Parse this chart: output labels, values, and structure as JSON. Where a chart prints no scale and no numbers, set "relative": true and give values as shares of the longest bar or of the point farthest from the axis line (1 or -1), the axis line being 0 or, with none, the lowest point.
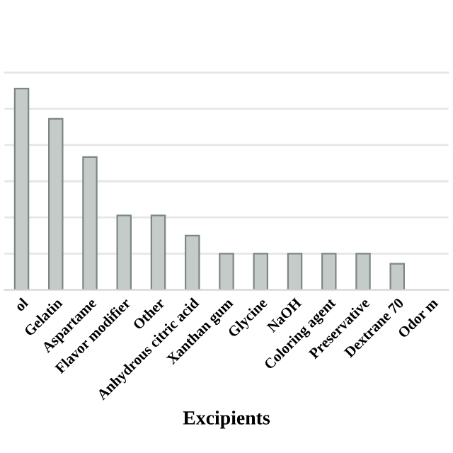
{
  "chart_data": {
    "type": "bar",
    "xlabel": "Excipients",
    "categories": [
      "ol",
      "Gelatin",
      "Aspartame",
      "Flavor modifier",
      "Other",
      "Anhydrous citric acid",
      "Xanthan gum",
      "Glycine",
      "NaOH",
      "Coloring agent",
      "Preservative",
      "Dextrane 70",
      "Odor m"
    ],
    "values": [
      1,
      0.85,
      0.66,
      0.37,
      0.37,
      0.27,
      0.18,
      0.18,
      0.18,
      0.18,
      0.18,
      0.13,
      null
    ],
    "color": "#c5cbc9",
    "relative": true,
    "grid": "y"
  }
}
